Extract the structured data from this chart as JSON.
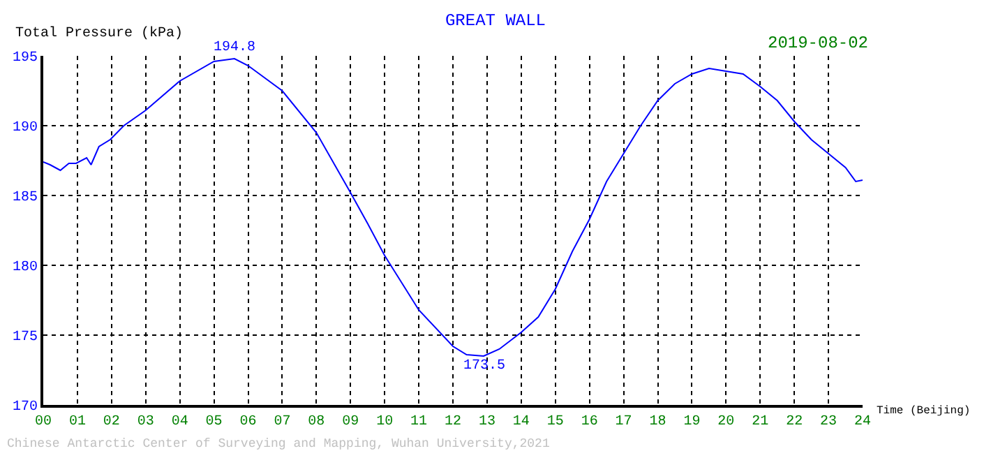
{
  "chart_data": {
    "type": "line",
    "title": "GREAT WALL",
    "ylabel": "Total Pressure (kPa)",
    "xlabel": "Time (Beijing)",
    "annotations": [
      "2019-08-02",
      "Chinese Antarctic Center of Surveying and Mapping, Wuhan University,2021",
      {
        "text": "194.8",
        "x": 5.6,
        "y": 194.8
      },
      {
        "text": "173.5",
        "x": 12.9,
        "y": 173.5
      }
    ],
    "x": [
      0,
      0.2,
      0.5,
      0.75,
      0.96,
      1.27,
      1.4,
      1.63,
      1.96,
      2.36,
      3,
      4,
      5,
      5.6,
      6,
      7,
      8,
      9,
      9.5,
      10,
      11,
      12,
      12.4,
      12.9,
      13.36,
      14,
      14.5,
      15,
      15.5,
      16,
      16.5,
      17,
      17.5,
      18,
      18.5,
      19,
      19.5,
      20,
      20.5,
      21,
      21.5,
      22,
      22.5,
      23,
      23.5,
      23.8,
      24
    ],
    "series": [
      {
        "color": "#0000ff",
        "values": [
          187.4,
          187.2,
          186.8,
          187.3,
          187.3,
          187.7,
          187.2,
          188.5,
          189.0,
          190.0,
          191.1,
          193.2,
          194.6,
          194.8,
          194.3,
          192.5,
          189.5,
          185.2,
          183.0,
          180.7,
          176.8,
          174.2,
          173.6,
          173.5,
          174.0,
          175.2,
          176.3,
          178.3,
          181.0,
          183.3,
          186.0,
          188.0,
          190.0,
          191.8,
          193.0,
          193.7,
          194.1,
          193.9,
          193.7,
          192.8,
          191.8,
          190.3,
          189.0,
          188.0,
          187.0,
          186.0,
          186.1
        ]
      }
    ],
    "xlim": [
      0,
      24
    ],
    "ylim": [
      170,
      195
    ],
    "xticks": [
      {
        "value": 0,
        "label": "00"
      },
      {
        "value": 1,
        "label": "01"
      },
      {
        "value": 2,
        "label": "02"
      },
      {
        "value": 3,
        "label": "03"
      },
      {
        "value": 4,
        "label": "04"
      },
      {
        "value": 5,
        "label": "05"
      },
      {
        "value": 6,
        "label": "06"
      },
      {
        "value": 7,
        "label": "07"
      },
      {
        "value": 8,
        "label": "08"
      },
      {
        "value": 9,
        "label": "09"
      },
      {
        "value": 10,
        "label": "10"
      },
      {
        "value": 11,
        "label": "11"
      },
      {
        "value": 12,
        "label": "12"
      },
      {
        "value": 13,
        "label": "13"
      },
      {
        "value": 14,
        "label": "14"
      },
      {
        "value": 15,
        "label": "15"
      },
      {
        "value": 16,
        "label": "16"
      },
      {
        "value": 17,
        "label": "17"
      },
      {
        "value": 18,
        "label": "18"
      },
      {
        "value": 19,
        "label": "19"
      },
      {
        "value": 20,
        "label": "20"
      },
      {
        "value": 21,
        "label": "21"
      },
      {
        "value": 22,
        "label": "22"
      },
      {
        "value": 23,
        "label": "23"
      },
      {
        "value": 24,
        "label": "24"
      }
    ],
    "yticks": [
      170,
      175,
      180,
      185,
      190,
      195
    ],
    "grid": true,
    "marker": "none",
    "line_style": "solid"
  }
}
